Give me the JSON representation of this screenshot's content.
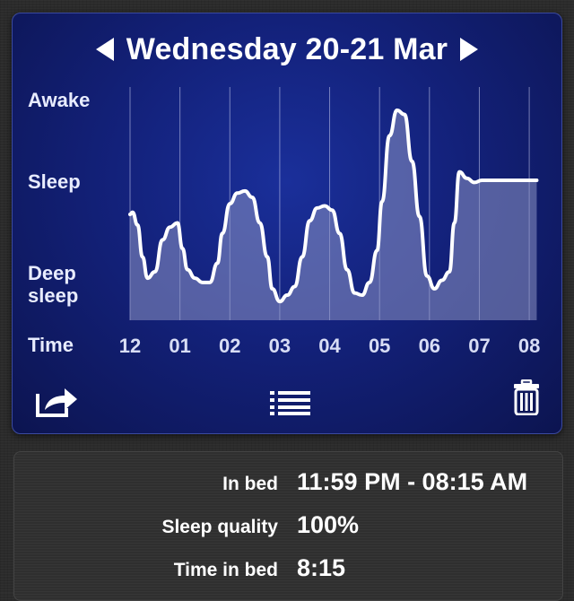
{
  "header": {
    "title": "Wednesday 20-21 Mar",
    "prev_icon": "triangle-left",
    "next_icon": "triangle-right"
  },
  "graph": {
    "y_labels": {
      "awake": "Awake",
      "sleep": "Sleep",
      "deep_line1": "Deep",
      "deep_line2": "sleep"
    },
    "x_title": "Time",
    "x_ticks": [
      "12",
      "01",
      "02",
      "03",
      "04",
      "05",
      "06",
      "07",
      "08"
    ],
    "line_color": "#ffffff",
    "fill_color": "#8c93c4",
    "sleep_level_series": {
      "scale_note": "0 = deep sleep, 1 = awake",
      "hours_after_midnight": [
        0.0,
        0.05,
        0.15,
        0.25,
        0.35,
        0.5,
        0.65,
        0.8,
        0.95,
        1.05,
        1.15,
        1.3,
        1.45,
        1.6,
        1.75,
        1.85,
        2.0,
        2.15,
        2.3,
        2.45,
        2.6,
        2.75,
        2.85,
        3.0,
        3.15,
        3.3,
        3.45,
        3.6,
        3.75,
        3.9,
        4.05,
        4.2,
        4.35,
        4.5,
        4.65,
        4.8,
        4.95,
        5.05,
        5.2,
        5.35,
        5.5,
        5.65,
        5.8,
        5.95,
        6.1,
        6.25,
        6.4,
        6.5,
        6.6,
        6.75,
        6.9,
        7.05,
        7.2,
        7.35,
        7.5,
        7.65,
        7.8,
        7.95,
        8.05,
        8.15
      ],
      "level": [
        0.46,
        0.47,
        0.41,
        0.26,
        0.16,
        0.19,
        0.34,
        0.4,
        0.42,
        0.3,
        0.2,
        0.16,
        0.14,
        0.14,
        0.23,
        0.37,
        0.51,
        0.56,
        0.57,
        0.54,
        0.42,
        0.26,
        0.11,
        0.05,
        0.08,
        0.12,
        0.26,
        0.43,
        0.49,
        0.5,
        0.48,
        0.37,
        0.2,
        0.09,
        0.08,
        0.14,
        0.29,
        0.52,
        0.83,
        0.95,
        0.93,
        0.71,
        0.45,
        0.17,
        0.11,
        0.15,
        0.19,
        0.42,
        0.66,
        0.63,
        0.61,
        0.62,
        0.62,
        0.62,
        0.62,
        0.62,
        0.62,
        0.62,
        0.62,
        0.62
      ]
    }
  },
  "toolbar": {
    "share_icon": "share-icon",
    "list_icon": "list-icon",
    "trash_icon": "trash-icon"
  },
  "info": {
    "in_bed_label": "In bed",
    "in_bed_value": "11:59 PM - 08:15 AM",
    "quality_label": "Sleep quality",
    "quality_value": "100%",
    "time_label": "Time in bed",
    "time_value": "8:15"
  }
}
